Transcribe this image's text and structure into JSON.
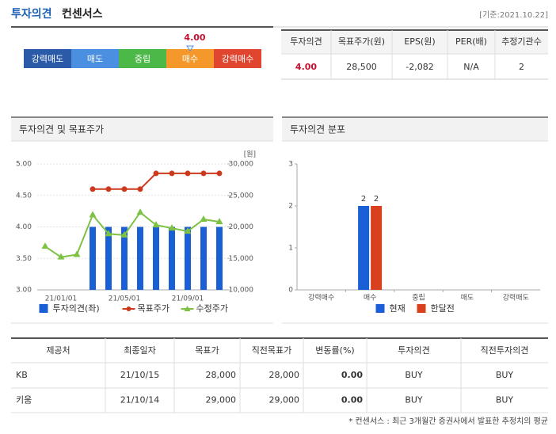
{
  "header": {
    "title": "투자의견",
    "subtitle": "컨센서스",
    "date": "[기준:2021.10.22]"
  },
  "opinion_scale": {
    "labels": [
      "강력매도",
      "매도",
      "중립",
      "매수",
      "강력매수"
    ],
    "colors": [
      "#2b5ba8",
      "#4a8fe0",
      "#4cb848",
      "#f5982c",
      "#e04530"
    ],
    "value": 4,
    "value_label": "4.00"
  },
  "summary_table": {
    "headers": [
      "투자의견",
      "목표주가(원)",
      "EPS(원)",
      "PER(배)",
      "추정기관수"
    ],
    "row": [
      "4.00",
      "28,500",
      "-2,082",
      "N/A",
      "2"
    ]
  },
  "chart_data": [
    {
      "type": "combo",
      "title": "투자의견 및 목표주가",
      "y2_label": "[원]",
      "categories": [
        null,
        "21/01/01",
        null,
        null,
        null,
        "21/05/01",
        null,
        null,
        null,
        "21/09/01",
        null,
        null
      ],
      "series": [
        {
          "name": "투자의견(좌)",
          "type": "bar",
          "axis": "y",
          "color": "#1a5fd6",
          "values": [
            null,
            null,
            null,
            4,
            4,
            4,
            4,
            4,
            4,
            4,
            4,
            4
          ]
        },
        {
          "name": "목표주가",
          "type": "line",
          "axis": "y2",
          "marker": "circle",
          "color": "#cc3a1e",
          "values": [
            null,
            null,
            null,
            26000,
            26000,
            26000,
            26000,
            28500,
            28500,
            28500,
            28500,
            28500
          ]
        },
        {
          "name": "수정주가",
          "type": "line",
          "axis": "y2",
          "marker": "triangle",
          "color": "#7dc243",
          "values": [
            16900,
            15200,
            15600,
            21900,
            18900,
            18700,
            22300,
            20300,
            19800,
            19300,
            21200,
            20800
          ]
        }
      ],
      "ylim": [
        3,
        5
      ],
      "yticks": [
        {
          "value": 3,
          "label": "3.00"
        },
        {
          "value": 3.5,
          "label": "3.50"
        },
        {
          "value": 4,
          "label": "4.00"
        },
        {
          "value": 4.5,
          "label": "4.50"
        },
        {
          "value": 5,
          "label": "5.00"
        }
      ],
      "y2lim": [
        10000,
        30000
      ],
      "y2ticks": [
        {
          "value": 10000,
          "label": "10,000"
        },
        {
          "value": 15000,
          "label": "15,000"
        },
        {
          "value": 20000,
          "label": "20,000"
        },
        {
          "value": 25000,
          "label": "25,000"
        },
        {
          "value": 30000,
          "label": "30,000"
        }
      ],
      "grid": true
    },
    {
      "type": "bar",
      "title": "투자의견 분포",
      "categories": [
        "강력매수",
        "매수",
        "중립",
        "매도",
        "강력매도"
      ],
      "series": [
        {
          "name": "현재",
          "color": "#1a5fd6",
          "values": [
            0,
            2,
            0,
            0,
            0
          ]
        },
        {
          "name": "한달전",
          "color": "#d8401e",
          "values": [
            0,
            2,
            0,
            0,
            0
          ]
        }
      ],
      "ylim": [
        0,
        3
      ],
      "yticks": [
        0,
        1,
        2,
        3
      ],
      "grid": false
    }
  ],
  "detail_table": {
    "headers": [
      "제공처",
      "최종일자",
      "목표가",
      "직전목표가",
      "변동률(%)",
      "투자의견",
      "직전투자의견"
    ],
    "rows": [
      [
        "KB",
        "21/10/15",
        "28,000",
        "28,000",
        "0.00",
        "BUY",
        "BUY"
      ],
      [
        "키움",
        "21/10/14",
        "29,000",
        "29,000",
        "0.00",
        "BUY",
        "BUY"
      ]
    ]
  },
  "footnote": "* 컨센서스 : 최근 3개월간 증권사에서 발표한 추정치의 평균"
}
